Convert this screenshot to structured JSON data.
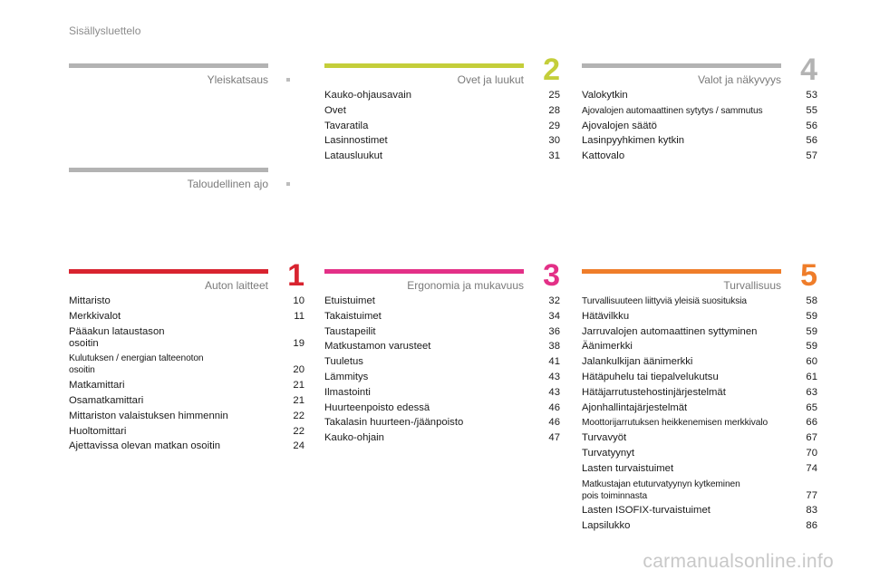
{
  "header": {
    "title": "Sisällysluettelo"
  },
  "colors": {
    "gray_bar": "#b3b3b3",
    "green_bar": "#c4ce3a",
    "red_bar": "#d8232f",
    "pink_bar": "#e33087",
    "orange_bar": "#ef7d2a"
  },
  "sections": {
    "yleiskatsaus": {
      "title": "Yleiskatsaus",
      "items": []
    },
    "taloudellinen": {
      "title": "Taloudellinen ajo",
      "items": []
    },
    "ovet": {
      "title": "Ovet ja luukut",
      "number": "2",
      "items": [
        {
          "label": "Kauko-ohjausavain",
          "page": "25"
        },
        {
          "label": "Ovet",
          "page": "28"
        },
        {
          "label": "Tavaratila",
          "page": "29"
        },
        {
          "label": "Lasinnostimet",
          "page": "30"
        },
        {
          "label": "Latausluukut",
          "page": "31"
        }
      ]
    },
    "valot": {
      "title": "Valot ja näkyvyys",
      "number": "4",
      "items": [
        {
          "label": "Valokytkin",
          "page": "53"
        },
        {
          "label": "Ajovalojen automaattinen sytytys / sammutus",
          "page": "55"
        },
        {
          "label": "Ajovalojen säätö",
          "page": "56"
        },
        {
          "label": "Lasinpyyhkimen kytkin",
          "page": "56"
        },
        {
          "label": "Kattovalo",
          "page": "57"
        }
      ]
    },
    "auton": {
      "title": "Auton laitteet",
      "number": "1",
      "items": [
        {
          "label": "Mittaristo",
          "page": "10"
        },
        {
          "label": "Merkkivalot",
          "page": "11"
        },
        {
          "label": "Pääakun lataustason\n    osoitin",
          "page": "19"
        },
        {
          "label": "Kulutuksen / energian talteenoton\n    osoitin",
          "page": "20"
        },
        {
          "label": "Matkamittari",
          "page": "21"
        },
        {
          "label": "Osamatkamittari",
          "page": "21"
        },
        {
          "label": "Mittariston valaistuksen himmennin",
          "page": "22"
        },
        {
          "label": "Huoltomittari",
          "page": "22"
        },
        {
          "label": "Ajettavissa olevan matkan osoitin",
          "page": "24"
        }
      ]
    },
    "ergonomia": {
      "title": "Ergonomia ja mukavuus",
      "number": "3",
      "items": [
        {
          "label": "Etuistuimet",
          "page": "32"
        },
        {
          "label": "Takaistuimet",
          "page": "34"
        },
        {
          "label": "Taustapeilit",
          "page": "36"
        },
        {
          "label": "Matkustamon varusteet",
          "page": "38"
        },
        {
          "label": "Tuuletus",
          "page": "41"
        },
        {
          "label": "Lämmitys",
          "page": "43"
        },
        {
          "label": "Ilmastointi",
          "page": "43"
        },
        {
          "label": "Huurteenpoisto edessä",
          "page": "46"
        },
        {
          "label": "Takalasin huurteen-/jäänpoisto",
          "page": "46"
        },
        {
          "label": "Kauko-ohjain",
          "page": "47"
        }
      ]
    },
    "turvallisuus": {
      "title": "Turvallisuus",
      "number": "5",
      "items": [
        {
          "label": "Turvallisuuteen liittyviä yleisiä suosituksia",
          "page": "58"
        },
        {
          "label": "Hätävilkku",
          "page": "59"
        },
        {
          "label": "Jarruvalojen automaattinen syttyminen",
          "page": "59"
        },
        {
          "label": "Äänimerkki",
          "page": "59"
        },
        {
          "label": "Jalankulkijan äänimerkki",
          "page": "60"
        },
        {
          "label": "Hätäpuhelu tai tiepalvelukutsu",
          "page": "61"
        },
        {
          "label": "Hätäjarrutustehostinjärjestelmät",
          "page": "63"
        },
        {
          "label": "Ajonhallintajärjestelmät",
          "page": "65"
        },
        {
          "label": "Moottorijarrutuksen heikkenemisen merkkivalo",
          "page": "66"
        },
        {
          "label": "Turvavyöt",
          "page": "67"
        },
        {
          "label": "Turvatyynyt",
          "page": "70"
        },
        {
          "label": "Lasten turvaistuimet",
          "page": "74"
        },
        {
          "label": "Matkustajan etuturvatyynyn kytkeminen\n    pois toiminnasta",
          "page": "77"
        },
        {
          "label": "Lasten ISOFIX-turvaistuimet",
          "page": "83"
        },
        {
          "label": "Lapsilukko",
          "page": "86"
        }
      ]
    }
  },
  "watermark": "carmanualsonline.info"
}
